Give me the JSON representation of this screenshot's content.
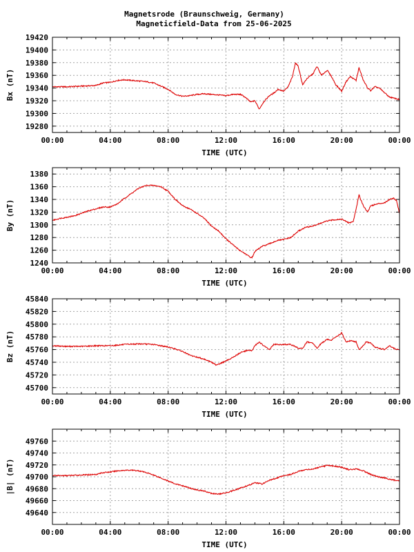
{
  "title": {
    "line1": "Magnetsrode (Braunschweig, Germany)",
    "line2": "Magneticfield-Data from 25-06-2025"
  },
  "colors": {
    "data": "#dd0000",
    "grid": "#a0a0a0",
    "frame": "#000000"
  },
  "chart_data": [
    {
      "type": "scatter",
      "ylabel": "Bx (nT)",
      "xlabel": "TIME (UTC)",
      "xlim": [
        0,
        24
      ],
      "ylim": [
        19270,
        19420
      ],
      "grid": true,
      "x_ticks": [
        "00:00",
        "04:00",
        "08:00",
        "12:00",
        "16:00",
        "20:00",
        "00:00"
      ],
      "y_ticks": [
        "19280",
        "19300",
        "19320",
        "19340",
        "19360",
        "19380",
        "19400",
        "19420"
      ],
      "x": [
        0,
        1,
        2,
        3,
        3.5,
        4,
        4.5,
        5,
        5.5,
        6,
        6.5,
        7,
        7.5,
        8,
        8.5,
        9,
        9.5,
        10,
        10.5,
        11,
        11.5,
        12,
        12.5,
        13,
        13.3,
        13.7,
        14,
        14.3,
        14.6,
        15,
        15.3,
        15.6,
        16,
        16.3,
        16.6,
        16.8,
        17,
        17.3,
        17.6,
        18,
        18.3,
        18.6,
        19,
        19.3,
        19.6,
        20,
        20.3,
        20.6,
        21,
        21.2,
        21.5,
        21.8,
        22,
        22.3,
        22.6,
        23,
        23.3,
        23.6,
        24
      ],
      "y": [
        19342,
        19342,
        19343,
        19344,
        19348,
        19349,
        19352,
        19353,
        19352,
        19351,
        19350,
        19348,
        19343,
        19338,
        19330,
        19327,
        19328,
        19330,
        19331,
        19330,
        19329,
        19328,
        19330,
        19330,
        19326,
        19318,
        19320,
        19307,
        19318,
        19328,
        19332,
        19338,
        19335,
        19342,
        19358,
        19380,
        19374,
        19345,
        19355,
        19362,
        19374,
        19360,
        19368,
        19358,
        19345,
        19335,
        19350,
        19358,
        19352,
        19372,
        19352,
        19340,
        19336,
        19342,
        19340,
        19332,
        19326,
        19324,
        19322
      ]
    },
    {
      "type": "scatter",
      "ylabel": "By (nT)",
      "xlabel": "TIME (UTC)",
      "xlim": [
        0,
        24
      ],
      "ylim": [
        1240,
        1390
      ],
      "grid": true,
      "x_ticks": [
        "00:00",
        "04:00",
        "08:00",
        "12:00",
        "16:00",
        "20:00",
        "00:00"
      ],
      "y_ticks": [
        "1240",
        "1260",
        "1280",
        "1300",
        "1320",
        "1340",
        "1360",
        "1380"
      ],
      "x": [
        0,
        0.5,
        1,
        1.5,
        2,
        2.5,
        3,
        3.5,
        4,
        4.5,
        5,
        5.5,
        6,
        6.5,
        7,
        7.5,
        8,
        8.5,
        9,
        9.5,
        10,
        10.5,
        11,
        11.5,
        12,
        12.5,
        13,
        13.3,
        13.6,
        13.8,
        14,
        14.5,
        15,
        15.5,
        16,
        16.5,
        17,
        17.5,
        18,
        18.5,
        19,
        19.5,
        20,
        20.5,
        20.8,
        21,
        21.2,
        21.5,
        21.8,
        22,
        22.5,
        23,
        23.3,
        23.6,
        23.8,
        24
      ],
      "y": [
        1307,
        1310,
        1312,
        1314,
        1318,
        1322,
        1325,
        1328,
        1328,
        1333,
        1342,
        1350,
        1358,
        1362,
        1362,
        1360,
        1353,
        1340,
        1330,
        1325,
        1318,
        1310,
        1298,
        1290,
        1278,
        1268,
        1259,
        1255,
        1250,
        1248,
        1258,
        1266,
        1270,
        1275,
        1277,
        1280,
        1290,
        1296,
        1298,
        1302,
        1306,
        1308,
        1309,
        1303,
        1305,
        1325,
        1347,
        1330,
        1320,
        1330,
        1333,
        1335,
        1340,
        1342,
        1338,
        1318
      ]
    },
    {
      "type": "scatter",
      "ylabel": "Bz (nT)",
      "xlabel": "TIME (UTC)",
      "xlim": [
        0,
        24
      ],
      "ylim": [
        45690,
        45840
      ],
      "grid": true,
      "x_ticks": [
        "00:00",
        "04:00",
        "08:00",
        "12:00",
        "16:00",
        "20:00",
        "00:00"
      ],
      "y_ticks": [
        "45700",
        "45720",
        "45740",
        "45760",
        "45780",
        "45800",
        "45820",
        "45840"
      ],
      "x": [
        0,
        1,
        2,
        3,
        4,
        5,
        6,
        7,
        8,
        8.5,
        9,
        9.5,
        10,
        10.5,
        11,
        11.3,
        11.6,
        12,
        12.5,
        13,
        13.5,
        13.8,
        14,
        14.3,
        14.6,
        15,
        15.3,
        15.6,
        16,
        16.4,
        16.7,
        17,
        17.3,
        17.6,
        18,
        18.3,
        18.6,
        19,
        19.3,
        19.6,
        20,
        20.3,
        20.6,
        21,
        21.2,
        21.4,
        21.7,
        22,
        22.3,
        22.6,
        23,
        23.3,
        23.6,
        24
      ],
      "y": [
        45766,
        45765,
        45765,
        45766,
        45766,
        45768,
        45769,
        45768,
        45764,
        45761,
        45757,
        45751,
        45748,
        45745,
        45740,
        45736,
        45738,
        45742,
        45748,
        45755,
        45759,
        45758,
        45766,
        45772,
        45766,
        45760,
        45768,
        45768,
        45768,
        45768,
        45766,
        45762,
        45762,
        45772,
        45770,
        45762,
        45770,
        45776,
        45775,
        45780,
        45786,
        45772,
        45774,
        45772,
        45760,
        45764,
        45772,
        45770,
        45764,
        45762,
        45760,
        45766,
        45762,
        45759
      ]
    },
    {
      "type": "scatter",
      "ylabel": "|B| (nT)",
      "xlabel": "TIME (UTC)",
      "xlim": [
        0,
        24
      ],
      "ylim": [
        49620,
        49780
      ],
      "grid": true,
      "x_ticks": [
        "00:00",
        "04:00",
        "08:00",
        "12:00",
        "16:00",
        "20:00",
        "00:00"
      ],
      "y_ticks": [
        "49640",
        "49660",
        "49680",
        "49700",
        "49720",
        "49740",
        "49760"
      ],
      "x": [
        0,
        1,
        2,
        3,
        3.5,
        4,
        4.5,
        5,
        5.5,
        6,
        6.5,
        7,
        7.5,
        8,
        8.5,
        9,
        9.5,
        10,
        10.5,
        11,
        11.5,
        12,
        12.5,
        13,
        13.5,
        14,
        14.5,
        15,
        15.5,
        16,
        16.5,
        17,
        17.5,
        18,
        18.5,
        19,
        19.5,
        20,
        20.5,
        21,
        21.5,
        22,
        22.5,
        23,
        23.5,
        24
      ],
      "y": [
        49702,
        49702,
        49703,
        49704,
        49707,
        49708,
        49710,
        49711,
        49711,
        49710,
        49707,
        49703,
        49698,
        49693,
        49688,
        49685,
        49681,
        49678,
        49676,
        49672,
        49671,
        49673,
        49677,
        49681,
        49685,
        49690,
        49688,
        49694,
        49698,
        49702,
        49704,
        49709,
        49712,
        49713,
        49716,
        49719,
        49718,
        49716,
        49712,
        49713,
        49710,
        49704,
        49700,
        49698,
        49695,
        49693
      ]
    }
  ]
}
